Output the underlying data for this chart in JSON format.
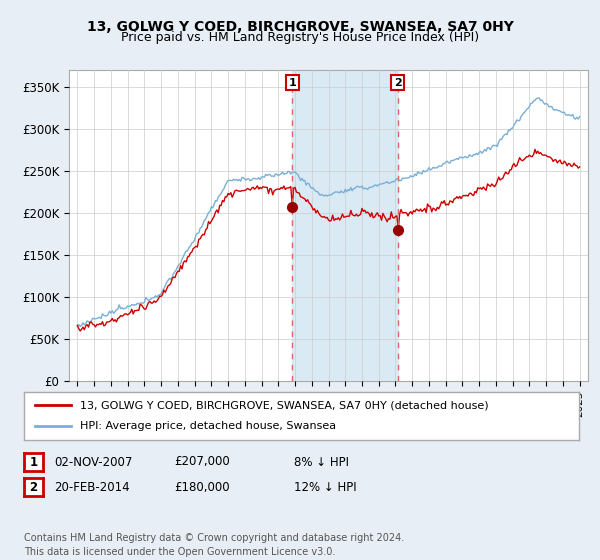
{
  "title": "13, GOLWG Y COED, BIRCHGROVE, SWANSEA, SA7 0HY",
  "subtitle": "Price paid vs. HM Land Registry's House Price Index (HPI)",
  "ylabel_ticks": [
    "£0",
    "£50K",
    "£100K",
    "£150K",
    "£200K",
    "£250K",
    "£300K",
    "£350K"
  ],
  "ytick_vals": [
    0,
    50000,
    100000,
    150000,
    200000,
    250000,
    300000,
    350000
  ],
  "ylim": [
    0,
    370000
  ],
  "xlim": [
    1994.5,
    2025.5
  ],
  "sale1": {
    "date_num": 2007.84,
    "price": 207000,
    "label": "1",
    "date_str": "02-NOV-2007",
    "pct": "8%"
  },
  "sale2": {
    "date_num": 2014.13,
    "price": 180000,
    "label": "2",
    "date_str": "20-FEB-2014",
    "pct": "12%"
  },
  "legend_entries": [
    "13, GOLWG Y COED, BIRCHGROVE, SWANSEA, SA7 0HY (detached house)",
    "HPI: Average price, detached house, Swansea"
  ],
  "footer": "Contains HM Land Registry data © Crown copyright and database right 2024.\nThis data is licensed under the Open Government Licence v3.0.",
  "sale_color": "#cc0000",
  "hpi_color": "#7bafd4",
  "shade_color": "#daeaf5",
  "background_color": "#e8eef5",
  "plot_bg_color": "#ffffff",
  "grid_color": "#cccccc",
  "vline_color": "#dd6666",
  "box_color": "#cc0000",
  "marker_color": "#990000"
}
